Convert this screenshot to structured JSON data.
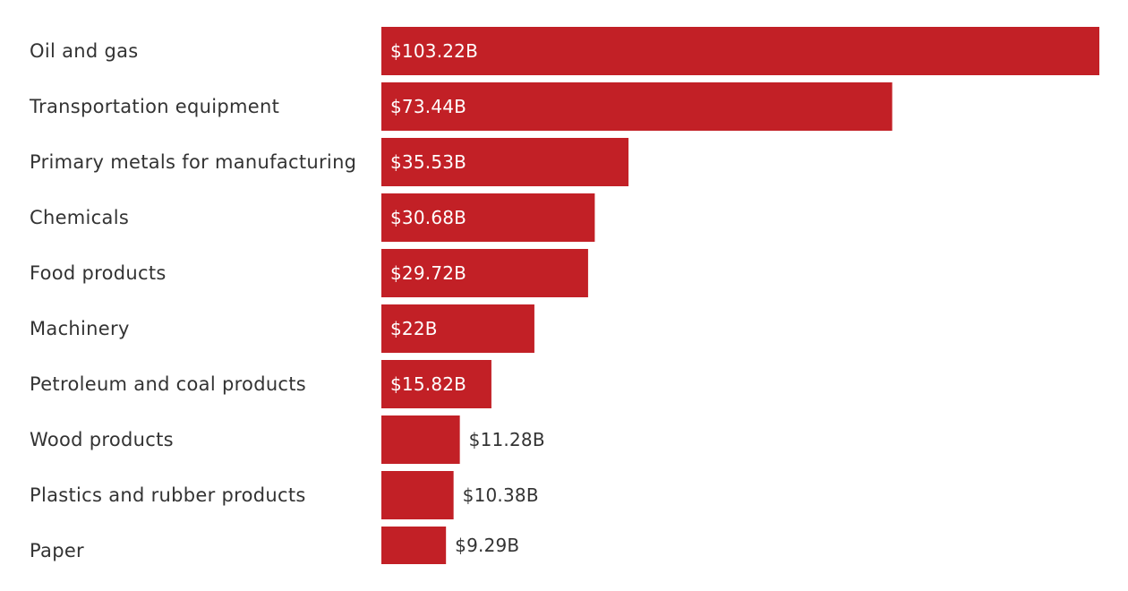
{
  "chart_data": {
    "type": "bar",
    "orientation": "horizontal",
    "categories": [
      "Oil and gas",
      "Transportation equipment",
      "Primary metals for manufacturing",
      "Chemicals",
      "Food products",
      "Machinery",
      "Petroleum and coal products",
      "Wood products",
      "Plastics and rubber products",
      "Paper"
    ],
    "values": [
      103.22,
      73.44,
      35.53,
      30.68,
      29.72,
      22,
      15.82,
      11.28,
      10.38,
      9.29
    ],
    "value_labels": [
      "$103.22B",
      "$73.44B",
      "$35.53B",
      "$30.68B",
      "$29.72B",
      "$22B",
      "$15.82B",
      "$11.28B",
      "$10.38B",
      "$9.29B"
    ],
    "unit": "$B",
    "xlim": [
      0,
      103.22
    ],
    "grid": false,
    "legend": "none",
    "colors": {
      "bar": "#c22026",
      "label_inside": "#ffffff",
      "label_outside": "#333333",
      "category_text": "#333333"
    }
  }
}
